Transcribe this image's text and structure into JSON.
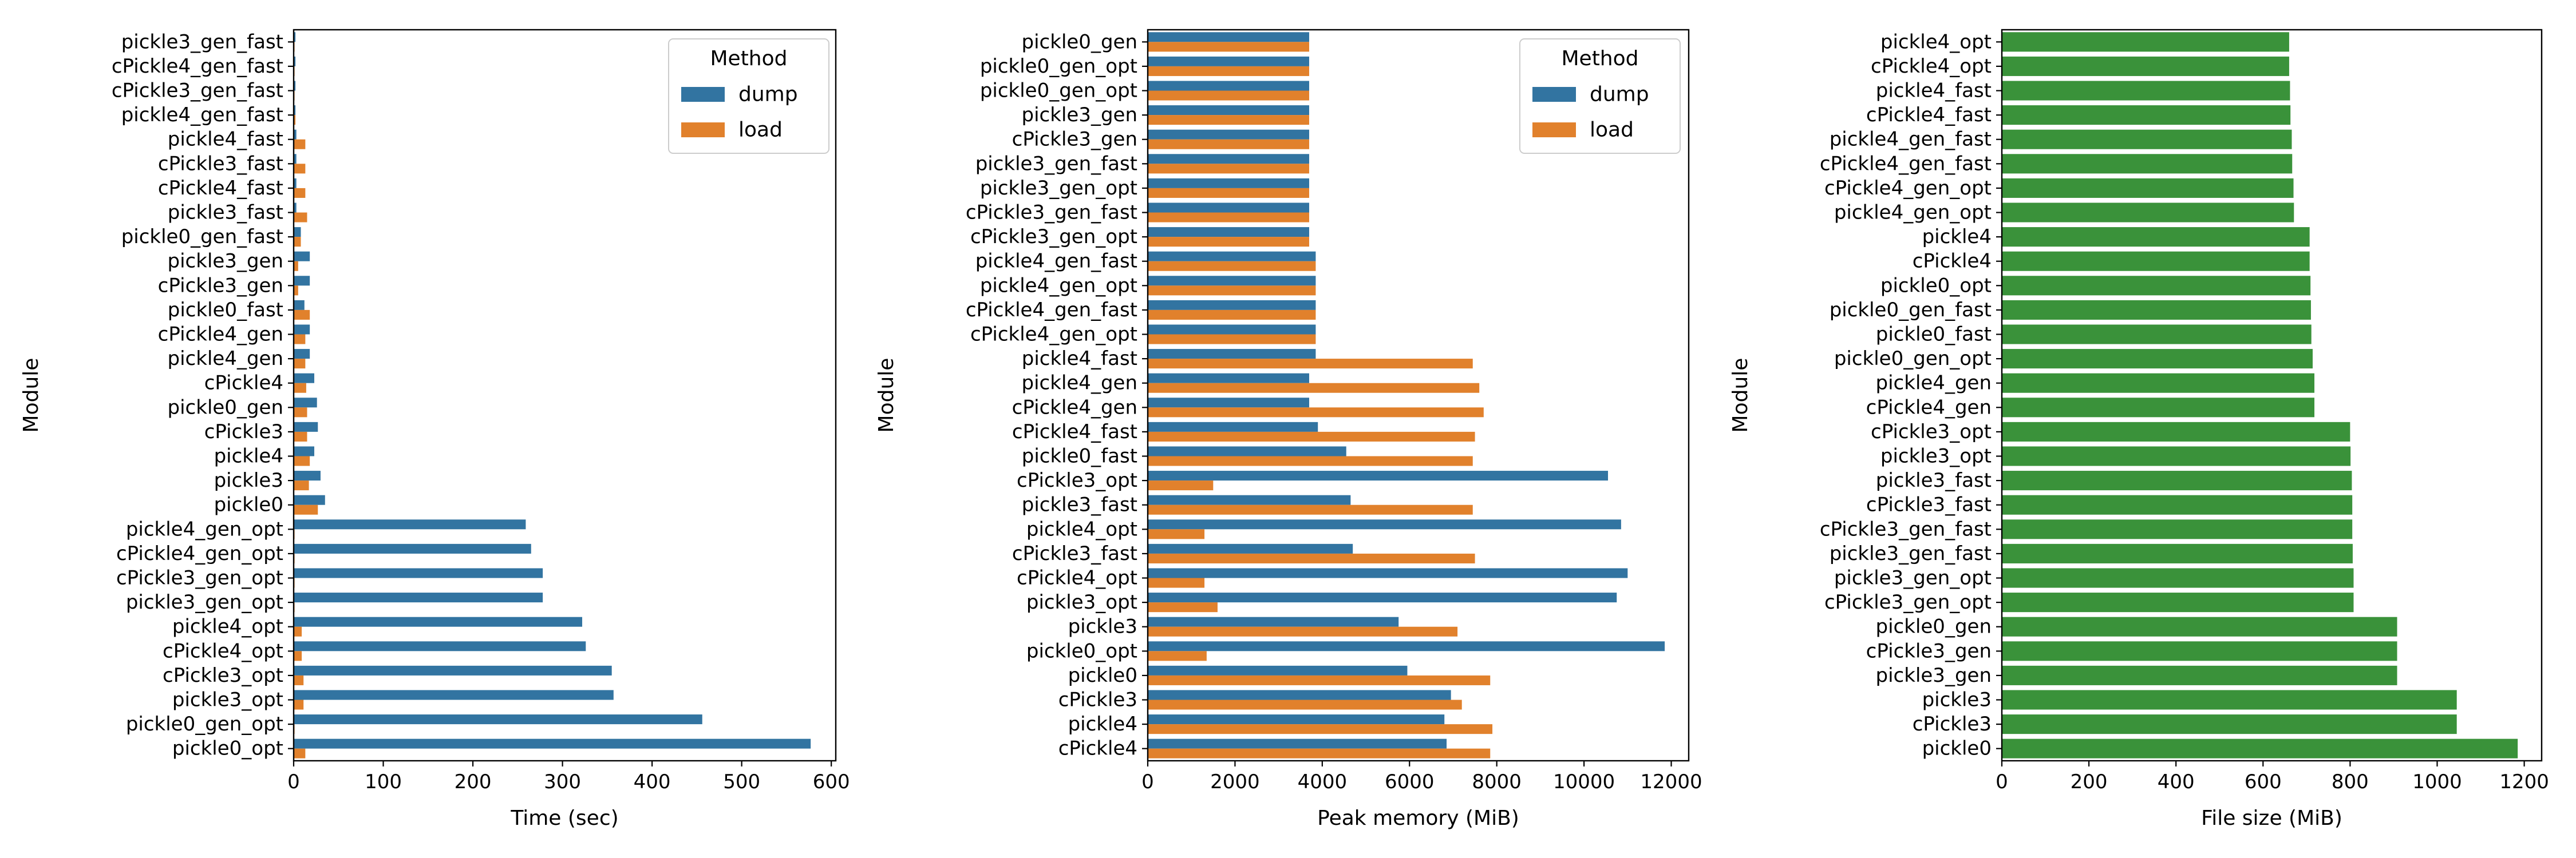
{
  "colors": {
    "dump": "#3274a1",
    "load": "#e1812c",
    "file_size": "#3a923a",
    "axis": "#000000"
  },
  "chart_data": [
    {
      "type": "bar",
      "orientation": "horizontal",
      "title": "",
      "xlabel": "Time (sec)",
      "ylabel": "Module",
      "xlim": [
        0,
        605
      ],
      "xticks": [
        0,
        100,
        200,
        300,
        400,
        500,
        600
      ],
      "grid": false,
      "legend": {
        "title": "Method",
        "placement": "top-right"
      },
      "categories": [
        "pickle3_gen_fast",
        "cPickle4_gen_fast",
        "cPickle3_gen_fast",
        "pickle4_gen_fast",
        "pickle4_fast",
        "cPickle3_fast",
        "cPickle4_fast",
        "pickle3_fast",
        "pickle0_gen_fast",
        "pickle3_gen",
        "cPickle3_gen",
        "pickle0_fast",
        "cPickle4_gen",
        "pickle4_gen",
        "cPickle4",
        "pickle0_gen",
        "cPickle3",
        "pickle4",
        "pickle3",
        "pickle0",
        "pickle4_gen_opt",
        "cPickle4_gen_opt",
        "cPickle3_gen_opt",
        "pickle3_gen_opt",
        "pickle4_opt",
        "cPickle4_opt",
        "cPickle3_opt",
        "pickle3_opt",
        "pickle0_gen_opt",
        "pickle0_opt"
      ],
      "series": [
        {
          "name": "dump",
          "values": [
            2,
            2,
            2,
            2,
            3,
            3,
            3,
            3,
            8,
            18,
            18,
            12,
            18,
            18,
            23,
            26,
            27,
            23,
            30,
            35,
            259,
            265,
            278,
            278,
            322,
            326,
            355,
            357,
            456,
            577
          ]
        },
        {
          "name": "load",
          "values": [
            1,
            1,
            1,
            2,
            13,
            13,
            13,
            15,
            8,
            5,
            5,
            18,
            13,
            13,
            14,
            15,
            15,
            18,
            17,
            27,
            1,
            1,
            1,
            1,
            9,
            9,
            11,
            11,
            1,
            13
          ]
        }
      ]
    },
    {
      "type": "bar",
      "orientation": "horizontal",
      "title": "",
      "xlabel": "Peak memory (MiB)",
      "ylabel": "Module",
      "xlim": [
        0,
        12400
      ],
      "xticks": [
        0,
        2000,
        4000,
        6000,
        8000,
        10000,
        12000
      ],
      "grid": false,
      "legend": {
        "title": "Method",
        "placement": "top-right"
      },
      "categories": [
        "pickle0_gen",
        "pickle0_gen_opt",
        "pickle0_gen_opt",
        "pickle3_gen",
        "cPickle3_gen",
        "pickle3_gen_fast",
        "pickle3_gen_opt",
        "cPickle3_gen_fast",
        "cPickle3_gen_opt",
        "pickle4_gen_fast",
        "pickle4_gen_opt",
        "cPickle4_gen_fast",
        "cPickle4_gen_opt",
        "pickle4_fast",
        "pickle4_gen",
        "cPickle4_gen",
        "cPickle4_fast",
        "pickle0_fast",
        "cPickle3_opt",
        "pickle3_fast",
        "pickle4_opt",
        "cPickle3_fast",
        "cPickle4_opt",
        "pickle3_opt",
        "pickle3",
        "pickle0_opt",
        "pickle0",
        "cPickle3",
        "pickle4",
        "cPickle4"
      ],
      "series": [
        {
          "name": "dump",
          "values": [
            3700,
            3700,
            3700,
            3700,
            3700,
            3700,
            3700,
            3700,
            3700,
            3850,
            3850,
            3850,
            3850,
            3850,
            3700,
            3700,
            3900,
            4550,
            10550,
            4650,
            10850,
            4700,
            11000,
            10750,
            5750,
            11850,
            5950,
            6950,
            6800,
            6850
          ]
        },
        {
          "name": "load",
          "values": [
            3700,
            3700,
            3700,
            3700,
            3700,
            3700,
            3700,
            3700,
            3700,
            3850,
            3850,
            3850,
            3850,
            7450,
            7600,
            7700,
            7500,
            7450,
            1500,
            7450,
            1300,
            7500,
            1300,
            1600,
            7100,
            1350,
            7850,
            7200,
            7900,
            7850
          ]
        }
      ]
    },
    {
      "type": "bar",
      "orientation": "horizontal",
      "title": "",
      "xlabel": "File size (MiB)",
      "ylabel": "Module",
      "xlim": [
        0,
        1240
      ],
      "xticks": [
        0,
        200,
        400,
        600,
        800,
        1000,
        1200
      ],
      "grid": false,
      "categories": [
        "pickle4_opt",
        "cPickle4_opt",
        "pickle4_fast",
        "cPickle4_fast",
        "pickle4_gen_fast",
        "cPickle4_gen_fast",
        "cPickle4_gen_opt",
        "pickle4_gen_opt",
        "pickle4",
        "cPickle4",
        "pickle0_opt",
        "pickle0_gen_fast",
        "pickle0_fast",
        "pickle0_gen_opt",
        "pickle4_gen",
        "cPickle4_gen",
        "cPickle3_opt",
        "pickle3_opt",
        "pickle3_fast",
        "cPickle3_fast",
        "cPickle3_gen_fast",
        "pickle3_gen_fast",
        "pickle3_gen_opt",
        "cPickle3_gen_opt",
        "pickle0_gen",
        "cPickle3_gen",
        "pickle3_gen",
        "pickle3",
        "cPickle3",
        "pickle0"
      ],
      "values": [
        660,
        660,
        662,
        663,
        666,
        667,
        670,
        671,
        707,
        707,
        709,
        710,
        711,
        714,
        718,
        718,
        800,
        801,
        804,
        805,
        805,
        806,
        808,
        808,
        908,
        908,
        908,
        1045,
        1045,
        1185
      ]
    }
  ]
}
